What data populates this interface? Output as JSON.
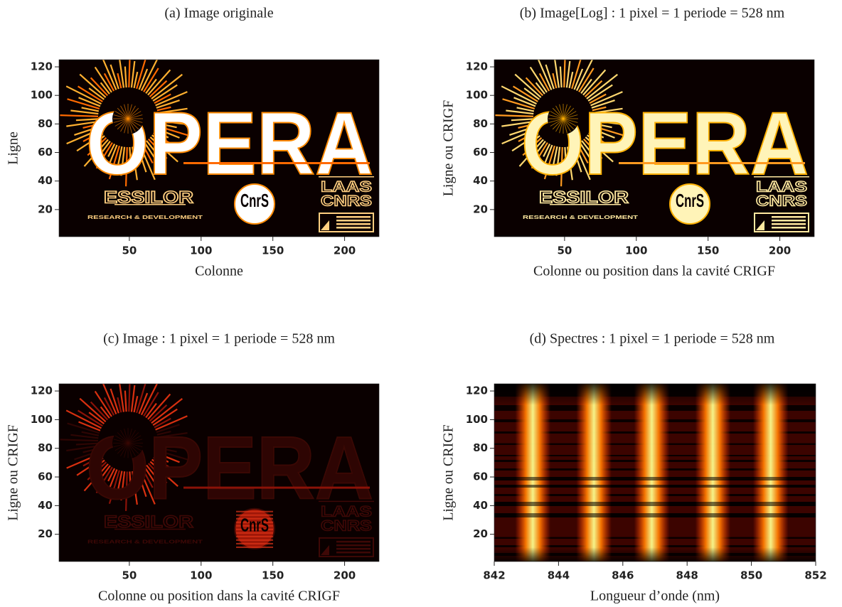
{
  "chart_data": [
    {
      "type": "image",
      "title": "(a) Image originale",
      "xlabel": "Colonne",
      "ylabel": "Ligne",
      "xlim": [
        1,
        224
      ],
      "xticks": [
        50,
        100,
        150,
        200
      ],
      "ylim": [
        1,
        125
      ],
      "yticks": [
        20,
        40,
        60,
        80,
        100,
        120
      ],
      "colormap": "hot",
      "style": "original",
      "logo_texts": [
        "OPERA",
        "ESSILOR",
        "RESEARCH & DEVELOPMENT",
        "CnrS",
        "LAAS",
        "CNRS"
      ]
    },
    {
      "type": "image",
      "title": "(b) Image[Log] :  1 pixel  =  1 periode  =  528 nm",
      "xlabel": "Colonne ou position dans la cavité CRIGF",
      "ylabel": "Ligne ou CRIGF",
      "xlim": [
        1,
        224
      ],
      "xticks": [
        50,
        100,
        150,
        200
      ],
      "ylim": [
        1,
        125
      ],
      "yticks": [
        20,
        40,
        60,
        80,
        100,
        120
      ],
      "colormap": "hot",
      "style": "log",
      "logo_texts": [
        "OPERA",
        "ESSILOR",
        "RESEARCH & DEVELOPMENT",
        "CnrS",
        "LAAS",
        "CNRS"
      ]
    },
    {
      "type": "image",
      "title": "(c) Image  :  1 pixel  =  1 periode  =  528 nm",
      "xlabel": "Colonne ou position dans la cavité CRIGF",
      "ylabel": "Ligne ou CRIGF",
      "xlim": [
        1,
        224
      ],
      "xticks": [
        50,
        100,
        150,
        200
      ],
      "ylim": [
        1,
        125
      ],
      "yticks": [
        20,
        40,
        60,
        80,
        100,
        120
      ],
      "colormap": "hot",
      "style": "faint",
      "logo_texts": [
        "OPERA",
        "ESSILOR",
        "RESEARCH & DEVELOPMENT",
        "CnrS",
        "LAAS",
        "CNRS"
      ]
    },
    {
      "type": "spectra",
      "title": "(d) Spectres  :  1 pixel  =  1 periode  =  528 nm",
      "xlabel": "Longueur d’onde (nm)",
      "ylabel": "Ligne ou CRIGF",
      "xlim": [
        842,
        852
      ],
      "xticks": [
        842,
        844,
        846,
        848,
        850,
        852
      ],
      "ylim": [
        1,
        125
      ],
      "yticks": [
        20,
        40,
        60,
        80,
        100,
        120
      ],
      "colormap": "hot",
      "peaks": [
        843.2,
        845.1,
        846.9,
        848.8,
        850.6
      ]
    }
  ]
}
